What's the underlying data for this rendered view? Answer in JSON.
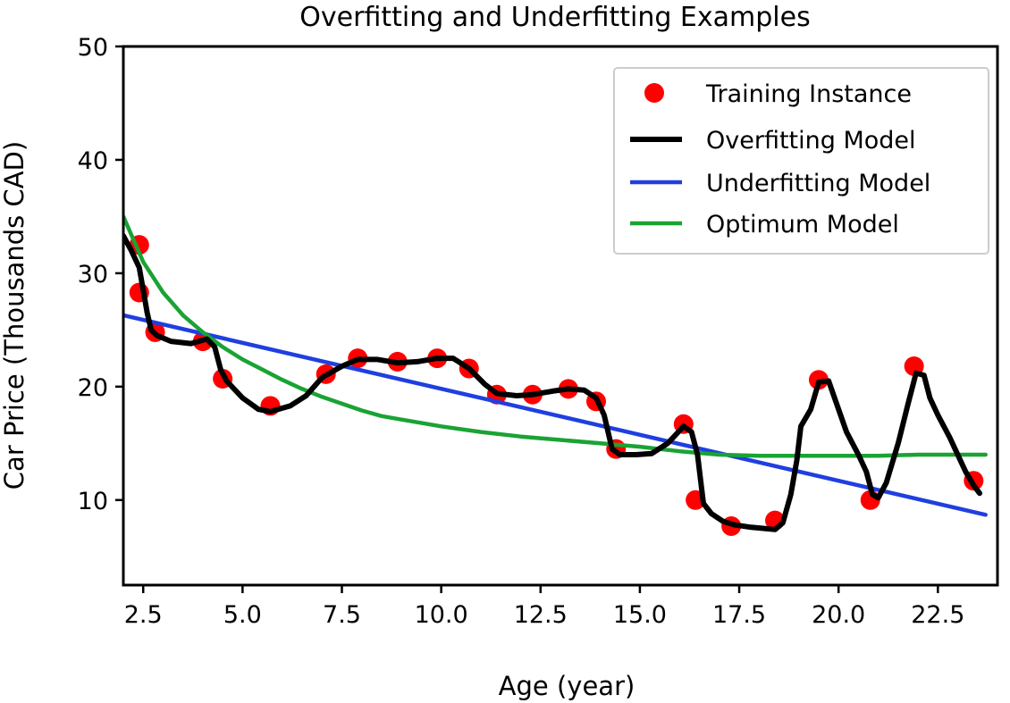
{
  "chart_data": {
    "type": "line",
    "title": "Overfitting and Underfitting Examples",
    "xlabel": "Age (year)",
    "ylabel": "Car Price (Thousands CAD)",
    "xlim": [
      2.0,
      24.0
    ],
    "ylim": [
      2.5,
      50
    ],
    "xticks": [
      2.5,
      5.0,
      7.5,
      10.0,
      12.5,
      15.0,
      17.5,
      20.0,
      22.5
    ],
    "xtick_labels": [
      "2.5",
      "5.0",
      "7.5",
      "10.0",
      "12.5",
      "15.0",
      "17.5",
      "20.0",
      "22.5"
    ],
    "yticks": [
      10,
      20,
      30,
      40,
      50
    ],
    "ytick_labels": [
      "10",
      "20",
      "30",
      "40",
      "50"
    ],
    "grid": false,
    "legend_position": "top-right",
    "series": [
      {
        "name": "Training Instance",
        "kind": "scatter",
        "color": "#ff0000",
        "x": [
          2.4,
          2.4,
          2.8,
          4.0,
          4.5,
          5.7,
          7.1,
          7.9,
          8.9,
          9.9,
          10.7,
          11.4,
          12.3,
          13.2,
          13.9,
          14.4,
          16.1,
          16.4,
          17.3,
          18.4,
          19.5,
          20.8,
          21.9,
          23.4
        ],
        "y": [
          32.5,
          28.3,
          24.8,
          24.0,
          20.7,
          18.3,
          21.1,
          22.5,
          22.2,
          22.5,
          21.6,
          19.3,
          19.3,
          19.8,
          18.7,
          14.5,
          16.7,
          10.0,
          7.7,
          8.2,
          20.6,
          10.0,
          21.8,
          11.7
        ]
      },
      {
        "name": "Overfitting Model",
        "kind": "line",
        "color": "#000000",
        "x": [
          2.0,
          2.2,
          2.4,
          2.6,
          2.7,
          2.85,
          3.2,
          3.7,
          4.1,
          4.3,
          4.45,
          4.6,
          5.0,
          5.4,
          5.7,
          6.2,
          6.6,
          7.0,
          7.5,
          7.9,
          8.4,
          8.9,
          9.4,
          9.9,
          10.3,
          10.7,
          11.1,
          11.4,
          11.9,
          12.3,
          12.8,
          13.2,
          13.6,
          13.9,
          14.1,
          14.3,
          14.5,
          14.9,
          15.3,
          15.7,
          16.1,
          16.3,
          16.45,
          16.6,
          16.8,
          17.1,
          17.4,
          17.8,
          18.1,
          18.4,
          18.6,
          18.8,
          18.95,
          19.05,
          19.3,
          19.5,
          19.75,
          20.0,
          20.2,
          20.5,
          20.7,
          20.85,
          21.0,
          21.2,
          21.5,
          21.75,
          21.95,
          22.15,
          22.3,
          22.5,
          22.8,
          23.0,
          23.2,
          23.4,
          23.55
        ],
        "y": [
          33.3,
          32.0,
          30.5,
          26.5,
          25.0,
          24.5,
          24.0,
          23.8,
          24.2,
          23.5,
          21.5,
          20.5,
          19.0,
          18.0,
          17.8,
          18.3,
          19.2,
          20.8,
          21.8,
          22.4,
          22.4,
          22.1,
          22.2,
          22.5,
          22.5,
          21.6,
          20.2,
          19.4,
          19.2,
          19.3,
          19.6,
          19.8,
          19.7,
          19.0,
          17.5,
          14.5,
          14.0,
          14.0,
          14.1,
          15.0,
          16.5,
          16.0,
          14.0,
          9.7,
          8.8,
          8.1,
          7.8,
          7.6,
          7.5,
          7.4,
          8.0,
          10.5,
          13.5,
          16.5,
          18.0,
          20.4,
          20.5,
          18.0,
          16.0,
          14.0,
          12.5,
          10.5,
          10.2,
          11.5,
          15.0,
          18.5,
          21.2,
          21.0,
          19.0,
          17.5,
          15.5,
          14.0,
          12.5,
          11.3,
          10.6
        ]
      },
      {
        "name": "Underfitting Model",
        "kind": "line",
        "color": "#1f3fe0",
        "x": [
          2.0,
          23.7
        ],
        "y": [
          26.3,
          8.7
        ]
      },
      {
        "name": "Optimum Model",
        "kind": "line",
        "color": "#1aa334",
        "x": [
          2.0,
          2.5,
          3.0,
          3.5,
          4.0,
          4.5,
          5.0,
          5.5,
          6.0,
          6.5,
          7.0,
          7.5,
          8.0,
          8.5,
          9.0,
          10.0,
          11.0,
          12.0,
          13.0,
          14.0,
          15.0,
          16.0,
          17.0,
          18.0,
          19.0,
          20.0,
          21.0,
          22.0,
          23.0,
          23.7
        ],
        "y": [
          35.0,
          31.0,
          28.3,
          26.3,
          24.8,
          23.5,
          22.4,
          21.5,
          20.6,
          19.8,
          19.1,
          18.5,
          17.9,
          17.4,
          17.1,
          16.5,
          16.0,
          15.6,
          15.3,
          15.0,
          14.7,
          14.3,
          14.0,
          13.9,
          13.9,
          13.9,
          13.9,
          14.0,
          14.0,
          14.0
        ]
      }
    ]
  }
}
